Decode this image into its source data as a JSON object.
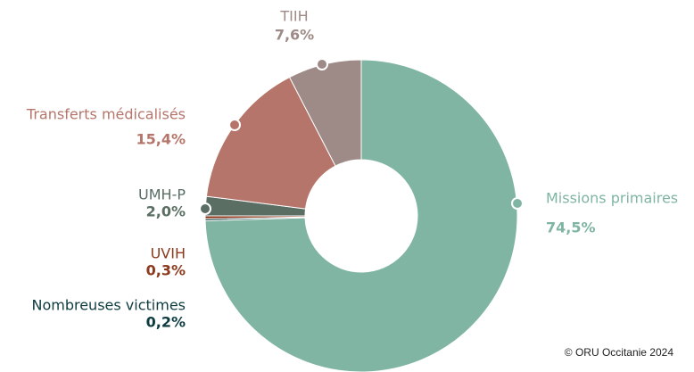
{
  "chart_data": {
    "type": "donut",
    "categories": [
      "Missions primaires",
      "Nombreuses victimes",
      "UVIH",
      "UMH-P",
      "Transferts médicalisés",
      "TIIH"
    ],
    "values": [
      74.5,
      0.2,
      0.3,
      2.0,
      15.4,
      7.6
    ],
    "value_labels": [
      "74,5%",
      "0,2%",
      "0,3%",
      "2,0%",
      "15,4%",
      "7,6%"
    ],
    "colors": [
      "#7fb5a2",
      "#0d3b3f",
      "#8b3a1e",
      "#5a6e63",
      "#b5756a",
      "#9e8b87"
    ],
    "annotation": "© ORU Occitanie 2024"
  }
}
